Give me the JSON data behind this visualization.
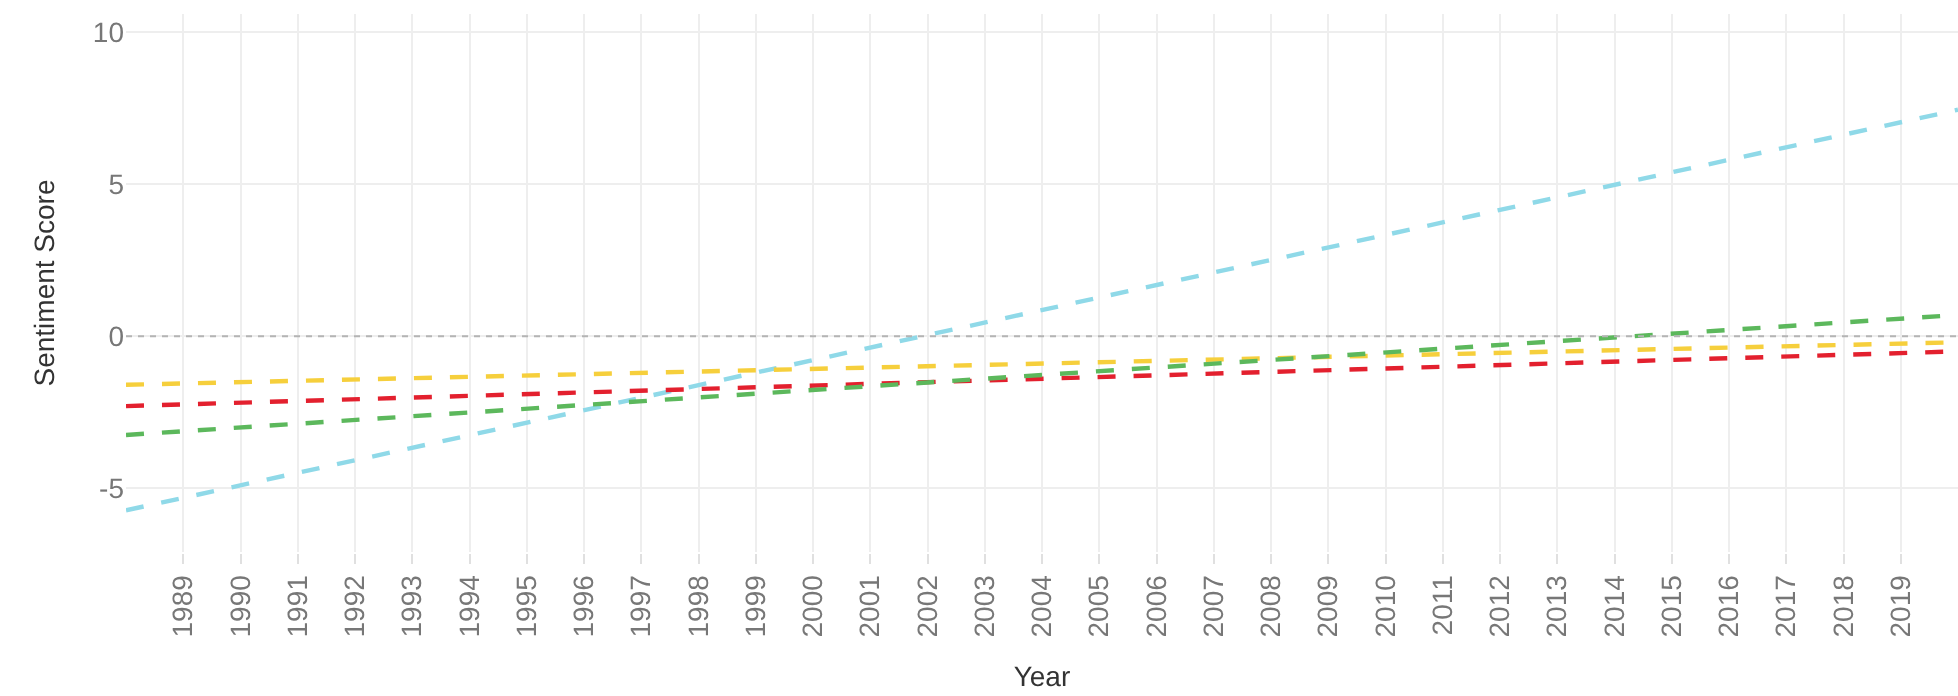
{
  "chart_data": {
    "type": "line",
    "xlabel": "Year",
    "ylabel": "Sentiment Score",
    "x": [
      1988,
      2020
    ],
    "series": [
      {
        "color": "#8fd9e8",
        "values": [
          -5.73,
          7.45
        ]
      },
      {
        "color": "#f6cf3c",
        "values": [
          -1.6,
          -0.2
        ]
      },
      {
        "color": "#e3202e",
        "values": [
          -2.3,
          -0.5
        ]
      },
      {
        "color": "#5cb85c",
        "values": [
          -3.25,
          0.7
        ]
      }
    ],
    "xlim": [
      1988,
      2020
    ],
    "xticks": [
      1989,
      1990,
      1991,
      1992,
      1993,
      1994,
      1995,
      1996,
      1997,
      1998,
      1999,
      2000,
      2001,
      2002,
      2003,
      2004,
      2005,
      2006,
      2007,
      2008,
      2009,
      2010,
      2011,
      2012,
      2013,
      2014,
      2015,
      2016,
      2017,
      2018,
      2019
    ],
    "ylim": [
      -7.1,
      10.6
    ],
    "yticks": [
      -5,
      0,
      5,
      10
    ],
    "ref_lines": [
      {
        "axis": "y",
        "value": 0,
        "color": "#b4b4b4",
        "line_style": "dotted"
      }
    ],
    "grid": true,
    "marker": "none",
    "line_style": "dashed"
  }
}
